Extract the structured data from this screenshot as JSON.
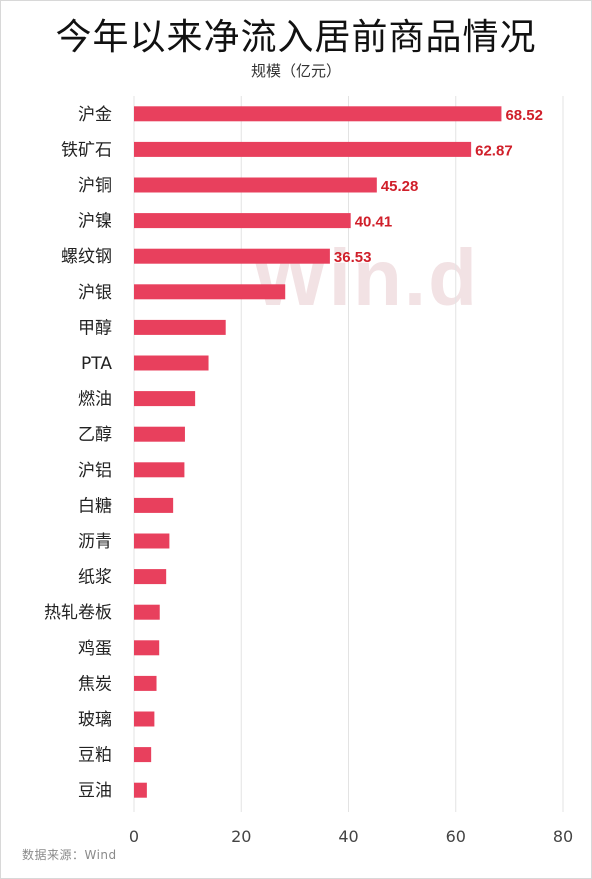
{
  "header": {
    "title": "今年以来净流入居前商品情况",
    "subtitle": "规模（亿元）"
  },
  "source": "数据来源：Wind",
  "watermark": "Win.d",
  "colors": {
    "bar": "#e8405d",
    "value_label": "#d01f2a",
    "grid": "#e3e3e3",
    "axis_text": "#444444"
  },
  "chart_data": {
    "type": "bar",
    "orientation": "horizontal",
    "title": "今年以来净流入居前商品情况",
    "xlabel": "规模（亿元）",
    "ylabel": "",
    "categories": [
      "沪金",
      "铁矿石",
      "沪铜",
      "沪镍",
      "螺纹钢",
      "沪银",
      "甲醇",
      "PTA",
      "燃油",
      "乙醇",
      "沪铝",
      "白糖",
      "沥青",
      "纸浆",
      "热轧卷板",
      "鸡蛋",
      "焦炭",
      "玻璃",
      "豆粕",
      "豆油"
    ],
    "values": [
      68.52,
      62.87,
      45.28,
      40.41,
      36.53,
      28.2,
      17.1,
      13.9,
      11.4,
      9.5,
      9.4,
      7.3,
      6.6,
      6.0,
      4.8,
      4.7,
      4.2,
      3.8,
      3.2,
      2.4
    ],
    "data_labels": [
      "68.52",
      "62.87",
      "45.28",
      "40.41",
      "36.53",
      "",
      "",
      "",
      "",
      "",
      "",
      "",
      "",
      "",
      "",
      "",
      "",
      "",
      "",
      ""
    ],
    "xlim": [
      0,
      80
    ],
    "xticks": [
      "0",
      "20",
      "40",
      "60",
      "80"
    ],
    "grid": true,
    "legend": "none"
  }
}
